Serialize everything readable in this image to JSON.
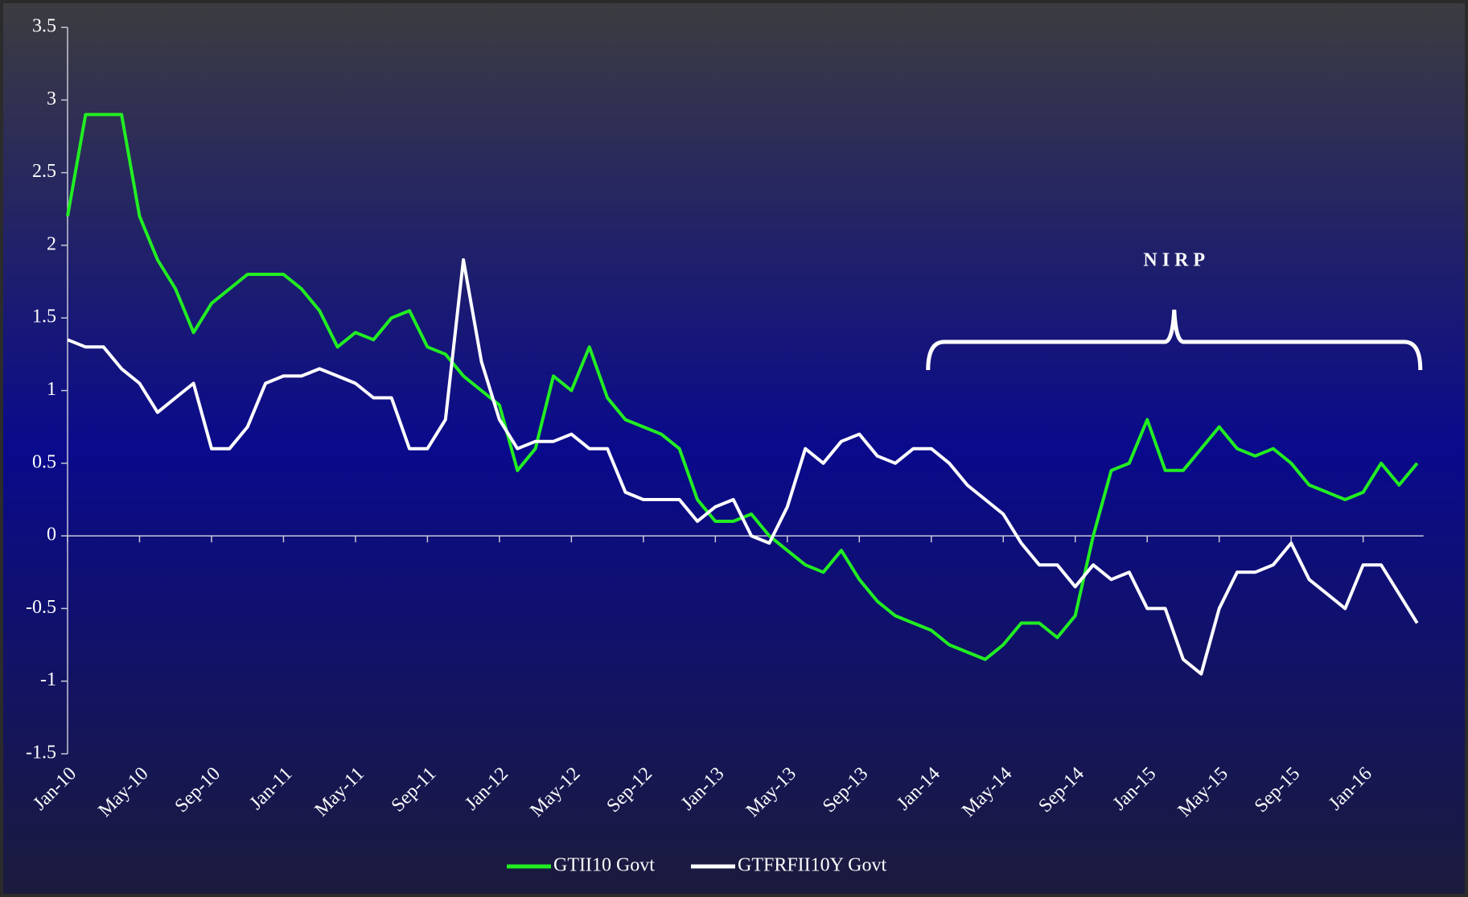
{
  "chart_data": {
    "type": "line",
    "annotation": "N I R P",
    "categories": [
      "Jan-10",
      null,
      null,
      null,
      "May-10",
      null,
      null,
      null,
      "Sep-10",
      null,
      null,
      null,
      "Jan-11",
      null,
      null,
      null,
      "May-11",
      null,
      null,
      null,
      "Sep-11",
      null,
      null,
      null,
      "Jan-12",
      null,
      null,
      null,
      "May-12",
      null,
      null,
      null,
      "Sep-12",
      null,
      null,
      null,
      "Jan-13",
      null,
      null,
      null,
      "May-13",
      null,
      null,
      null,
      "Sep-13",
      null,
      null,
      null,
      "Jan-14",
      null,
      null,
      null,
      "May-14",
      null,
      null,
      null,
      "Sep-14",
      null,
      null,
      null,
      "Jan-15",
      null,
      null,
      null,
      "May-15",
      null,
      null,
      null,
      "Sep-15",
      null,
      null,
      null,
      "Jan-16",
      null,
      null,
      null
    ],
    "series": [
      {
        "name": "GTII10 Govt",
        "color": "#22ee22",
        "values": [
          2.2,
          2.9,
          2.9,
          2.9,
          2.2,
          1.9,
          1.7,
          1.4,
          1.6,
          1.7,
          1.8,
          1.8,
          1.8,
          1.7,
          1.55,
          1.3,
          1.4,
          1.35,
          1.5,
          1.55,
          1.3,
          1.25,
          1.1,
          1.0,
          0.9,
          0.45,
          0.6,
          1.1,
          1.0,
          1.3,
          0.95,
          0.8,
          0.75,
          0.7,
          0.6,
          0.25,
          0.1,
          0.1,
          0.15,
          0.0,
          -0.1,
          -0.2,
          -0.25,
          -0.1,
          -0.3,
          -0.45,
          -0.55,
          -0.6,
          -0.65,
          -0.75,
          -0.8,
          -0.85,
          -0.75,
          -0.6,
          -0.6,
          -0.7,
          -0.55,
          0.0,
          0.45,
          0.5,
          0.8,
          0.45,
          0.45,
          0.6,
          0.75,
          0.6,
          0.55,
          0.6,
          0.5,
          0.35,
          0.3,
          0.25,
          0.3,
          0.5,
          0.35,
          0.5
        ]
      },
      {
        "name": "GTFRFII10Y Govt",
        "color": "#ffffff",
        "values": [
          1.35,
          1.3,
          1.3,
          1.15,
          1.05,
          0.85,
          0.95,
          1.05,
          0.6,
          0.6,
          0.75,
          1.05,
          1.1,
          1.1,
          1.15,
          1.1,
          1.05,
          0.95,
          0.95,
          0.6,
          0.6,
          0.8,
          1.9,
          1.2,
          0.8,
          0.6,
          0.65,
          0.65,
          0.7,
          0.6,
          0.6,
          0.3,
          0.25,
          0.25,
          0.25,
          0.1,
          0.2,
          0.25,
          0.0,
          -0.05,
          0.2,
          0.6,
          0.5,
          0.65,
          0.7,
          0.55,
          0.5,
          0.6,
          0.6,
          0.5,
          0.35,
          0.25,
          0.15,
          -0.05,
          -0.2,
          -0.2,
          -0.35,
          -0.2,
          -0.3,
          -0.25,
          -0.5,
          -0.5,
          -0.85,
          -0.95,
          -0.5,
          -0.25,
          -0.25,
          -0.2,
          -0.05,
          -0.3,
          -0.4,
          -0.5,
          -0.2,
          -0.2,
          -0.4,
          -0.6
        ]
      }
    ],
    "ylim": [
      -1.5,
      3.5
    ],
    "yticks": [
      -1.5,
      -1,
      -0.5,
      0,
      0.5,
      1,
      1.5,
      2,
      2.5,
      3,
      3.5
    ],
    "legend": "bottom"
  }
}
